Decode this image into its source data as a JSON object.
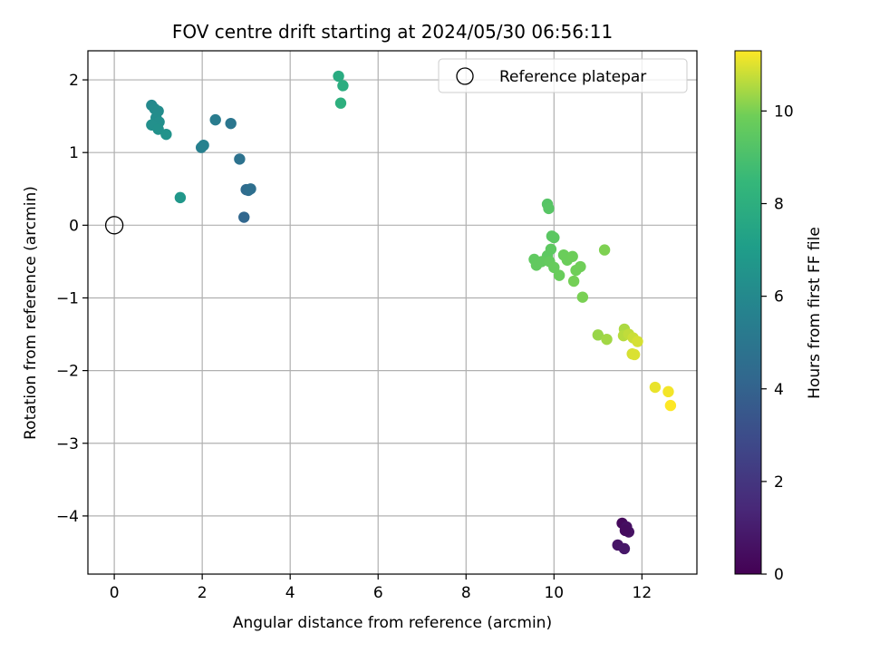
{
  "chart_data": {
    "type": "scatter",
    "title": "FOV centre drift starting at 2024/05/30 06:56:11",
    "xlabel": "Angular distance from reference (arcmin)",
    "ylabel": "Rotation from reference (arcmin)",
    "xlim": [
      -0.6,
      13.25
    ],
    "ylim": [
      -4.8,
      2.4
    ],
    "xticks": [
      0,
      2,
      4,
      6,
      8,
      10,
      12
    ],
    "yticks": [
      2,
      1,
      0,
      -1,
      -2,
      -3,
      -4
    ],
    "xtick_labels": [
      "0",
      "2",
      "4",
      "6",
      "8",
      "10",
      "12"
    ],
    "ytick_labels": [
      "2",
      "1",
      "0",
      "−1",
      "−2",
      "−3",
      "−4"
    ],
    "grid": true,
    "reference_point": {
      "x": 0,
      "y": 0,
      "label": "Reference platepar"
    },
    "legend": {
      "position": "top-right",
      "entries": [
        "Reference platepar"
      ]
    },
    "colorbar": {
      "label": "Hours from first FF file",
      "range": [
        0,
        11.3
      ],
      "ticks": [
        0,
        2,
        4,
        6,
        8,
        10
      ],
      "tick_labels": [
        "0",
        "2",
        "4",
        "6",
        "8",
        "10"
      ],
      "colormap": "viridis"
    },
    "points": [
      {
        "x": 11.55,
        "y": -4.1,
        "h": 0.3
      },
      {
        "x": 11.65,
        "y": -4.15,
        "h": 0.5
      },
      {
        "x": 11.7,
        "y": -4.22,
        "h": 0.6
      },
      {
        "x": 11.62,
        "y": -4.2,
        "h": 0.4
      },
      {
        "x": 11.45,
        "y": -4.4,
        "h": 0.7
      },
      {
        "x": 11.6,
        "y": -4.45,
        "h": 0.8
      },
      {
        "x": 2.95,
        "y": 0.11,
        "h": 4.2
      },
      {
        "x": 3.0,
        "y": 0.49,
        "h": 4.4
      },
      {
        "x": 3.05,
        "y": 0.48,
        "h": 4.5
      },
      {
        "x": 3.1,
        "y": 0.5,
        "h": 4.6
      },
      {
        "x": 2.85,
        "y": 0.91,
        "h": 4.8
      },
      {
        "x": 2.65,
        "y": 1.4,
        "h": 5.0
      },
      {
        "x": 2.3,
        "y": 1.45,
        "h": 5.3
      },
      {
        "x": 1.98,
        "y": 1.07,
        "h": 5.5
      },
      {
        "x": 2.03,
        "y": 1.1,
        "h": 5.6
      },
      {
        "x": 0.85,
        "y": 1.65,
        "h": 6.0
      },
      {
        "x": 0.92,
        "y": 1.6,
        "h": 6.1
      },
      {
        "x": 1.0,
        "y": 1.57,
        "h": 6.15
      },
      {
        "x": 0.95,
        "y": 1.48,
        "h": 6.2
      },
      {
        "x": 1.02,
        "y": 1.42,
        "h": 6.3
      },
      {
        "x": 0.85,
        "y": 1.38,
        "h": 6.35
      },
      {
        "x": 1.0,
        "y": 1.32,
        "h": 6.4
      },
      {
        "x": 1.18,
        "y": 1.25,
        "h": 6.5
      },
      {
        "x": 1.5,
        "y": 0.38,
        "h": 6.7
      },
      {
        "x": 5.1,
        "y": 2.05,
        "h": 7.8
      },
      {
        "x": 5.2,
        "y": 1.92,
        "h": 7.9
      },
      {
        "x": 5.15,
        "y": 1.68,
        "h": 8.0
      },
      {
        "x": 9.85,
        "y": 0.29,
        "h": 9.3
      },
      {
        "x": 9.88,
        "y": 0.23,
        "h": 9.35
      },
      {
        "x": 9.95,
        "y": -0.15,
        "h": 9.4
      },
      {
        "x": 10.0,
        "y": -0.17,
        "h": 9.45
      },
      {
        "x": 9.93,
        "y": -0.33,
        "h": 9.5
      },
      {
        "x": 9.85,
        "y": -0.42,
        "h": 9.5
      },
      {
        "x": 9.55,
        "y": -0.47,
        "h": 9.55
      },
      {
        "x": 9.6,
        "y": -0.55,
        "h": 9.6
      },
      {
        "x": 9.72,
        "y": -0.5,
        "h": 9.6
      },
      {
        "x": 9.9,
        "y": -0.5,
        "h": 9.65
      },
      {
        "x": 10.0,
        "y": -0.58,
        "h": 9.7
      },
      {
        "x": 10.12,
        "y": -0.69,
        "h": 9.75
      },
      {
        "x": 10.22,
        "y": -0.41,
        "h": 9.8
      },
      {
        "x": 10.3,
        "y": -0.48,
        "h": 9.8
      },
      {
        "x": 10.42,
        "y": -0.43,
        "h": 9.85
      },
      {
        "x": 10.5,
        "y": -0.62,
        "h": 9.9
      },
      {
        "x": 10.6,
        "y": -0.57,
        "h": 9.9
      },
      {
        "x": 10.45,
        "y": -0.77,
        "h": 9.95
      },
      {
        "x": 10.65,
        "y": -0.99,
        "h": 10.0
      },
      {
        "x": 11.15,
        "y": -0.34,
        "h": 10.05
      },
      {
        "x": 11.0,
        "y": -1.51,
        "h": 10.3
      },
      {
        "x": 11.2,
        "y": -1.57,
        "h": 10.4
      },
      {
        "x": 11.6,
        "y": -1.43,
        "h": 10.5
      },
      {
        "x": 11.58,
        "y": -1.52,
        "h": 10.6
      },
      {
        "x": 11.7,
        "y": -1.5,
        "h": 10.7
      },
      {
        "x": 11.8,
        "y": -1.55,
        "h": 10.8
      },
      {
        "x": 11.9,
        "y": -1.6,
        "h": 10.9
      },
      {
        "x": 11.78,
        "y": -1.77,
        "h": 10.9
      },
      {
        "x": 11.83,
        "y": -1.78,
        "h": 10.95
      },
      {
        "x": 12.3,
        "y": -2.23,
        "h": 11.1
      },
      {
        "x": 12.6,
        "y": -2.29,
        "h": 11.2
      },
      {
        "x": 12.65,
        "y": -2.48,
        "h": 11.3
      }
    ]
  }
}
